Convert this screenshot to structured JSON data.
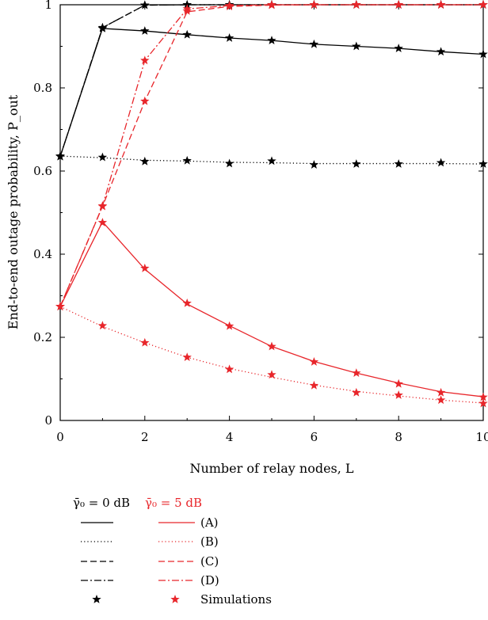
{
  "chart_data": {
    "type": "line",
    "xlabel": "Number of relay nodes, L",
    "ylabel": "End-to-end outage probability, P_out",
    "xlim": [
      0,
      10
    ],
    "ylim": [
      0,
      1
    ],
    "xticks": [
      "0",
      "2",
      "4",
      "6",
      "8",
      "10"
    ],
    "yticks": [
      "0",
      "0.2",
      "0.4",
      "0.6",
      "0.8",
      "1"
    ],
    "grid": false,
    "legend_position": "bottom",
    "x": [
      0,
      1,
      2,
      3,
      4,
      5,
      6,
      7,
      8,
      9,
      10
    ],
    "groups": [
      {
        "label": "γ̄₀ = 0 dB",
        "color": "#000000"
      },
      {
        "label": "γ̄₀ = 5 dB",
        "color": "#e8262b"
      }
    ],
    "series": [
      {
        "curve": "(A)",
        "group": 0,
        "style": "solid",
        "values": [
          0.635,
          0.943,
          0.937,
          0.928,
          0.92,
          0.914,
          0.905,
          0.9,
          0.895,
          0.887,
          0.881
        ],
        "sim": [
          0.635,
          0.943,
          0.937,
          0.928,
          0.92,
          0.914,
          0.905,
          0.9,
          0.895,
          0.887,
          0.881
        ]
      },
      {
        "curve": "(B)",
        "group": 0,
        "style": "dotted",
        "values": [
          0.636,
          0.632,
          0.626,
          0.624,
          0.621,
          0.62,
          0.618,
          0.618,
          0.618,
          0.618,
          0.617
        ],
        "sim": [
          0.636,
          0.633,
          0.623,
          0.625,
          0.618,
          0.624,
          0.615,
          0.617,
          0.617,
          0.62,
          0.617
        ]
      },
      {
        "curve": "(C)",
        "group": 0,
        "style": "dashed",
        "values": [
          0.635,
          0.945,
          0.999,
          1.0,
          1.0,
          1.0,
          1.0,
          1.0,
          1.0,
          1.0,
          1.0
        ],
        "sim": [
          0.635,
          0.945,
          0.999,
          1.0,
          1.0,
          1.0,
          1.0,
          1.0,
          1.0,
          1.0,
          1.0
        ]
      },
      {
        "curve": "(D)",
        "group": 0,
        "style": "dashdot",
        "values": [
          0.635,
          0.945,
          0.999,
          1.0,
          1.0,
          1.0,
          1.0,
          1.0,
          1.0,
          1.0,
          1.0
        ],
        "sim": [
          0.635,
          0.945,
          0.999,
          1.0,
          1.0,
          1.0,
          1.0,
          1.0,
          1.0,
          1.0,
          1.0
        ]
      },
      {
        "curve": "(A)",
        "group": 1,
        "style": "solid",
        "values": [
          0.274,
          0.478,
          0.364,
          0.28,
          0.228,
          0.178,
          0.142,
          0.114,
          0.09,
          0.069,
          0.057
        ],
        "sim": [
          0.274,
          0.476,
          0.366,
          0.282,
          0.227,
          0.178,
          0.141,
          0.114,
          0.088,
          0.067,
          0.056
        ]
      },
      {
        "curve": "(B)",
        "group": 1,
        "style": "dotted",
        "values": [
          0.274,
          0.226,
          0.187,
          0.152,
          0.125,
          0.104,
          0.085,
          0.07,
          0.059,
          0.049,
          0.042
        ],
        "sim": [
          0.274,
          0.228,
          0.187,
          0.152,
          0.123,
          0.11,
          0.084,
          0.067,
          0.061,
          0.049,
          0.041
        ]
      },
      {
        "curve": "(C)",
        "group": 1,
        "style": "dashed",
        "values": [
          0.274,
          0.515,
          0.768,
          0.983,
          0.996,
          0.999,
          1.0,
          1.0,
          1.0,
          1.0,
          1.0
        ],
        "sim": [
          0.274,
          0.515,
          0.768,
          0.985,
          0.996,
          0.999,
          1.0,
          1.0,
          1.0,
          1.0,
          1.0
        ]
      },
      {
        "curve": "(D)",
        "group": 1,
        "style": "dashdot",
        "values": [
          0.274,
          0.516,
          0.866,
          0.99,
          0.998,
          1.0,
          1.0,
          1.0,
          1.0,
          1.0,
          1.0
        ],
        "sim": [
          0.274,
          0.516,
          0.866,
          0.99,
          0.998,
          1.0,
          1.0,
          1.0,
          1.0,
          1.0,
          1.0
        ]
      }
    ],
    "legend": {
      "header_0": "γ̄₀ = 0 dB",
      "header_5": "γ̄₀ = 5 dB",
      "rows": [
        "(A)",
        "(B)",
        "(C)",
        "(D)",
        "Simulations"
      ]
    }
  }
}
